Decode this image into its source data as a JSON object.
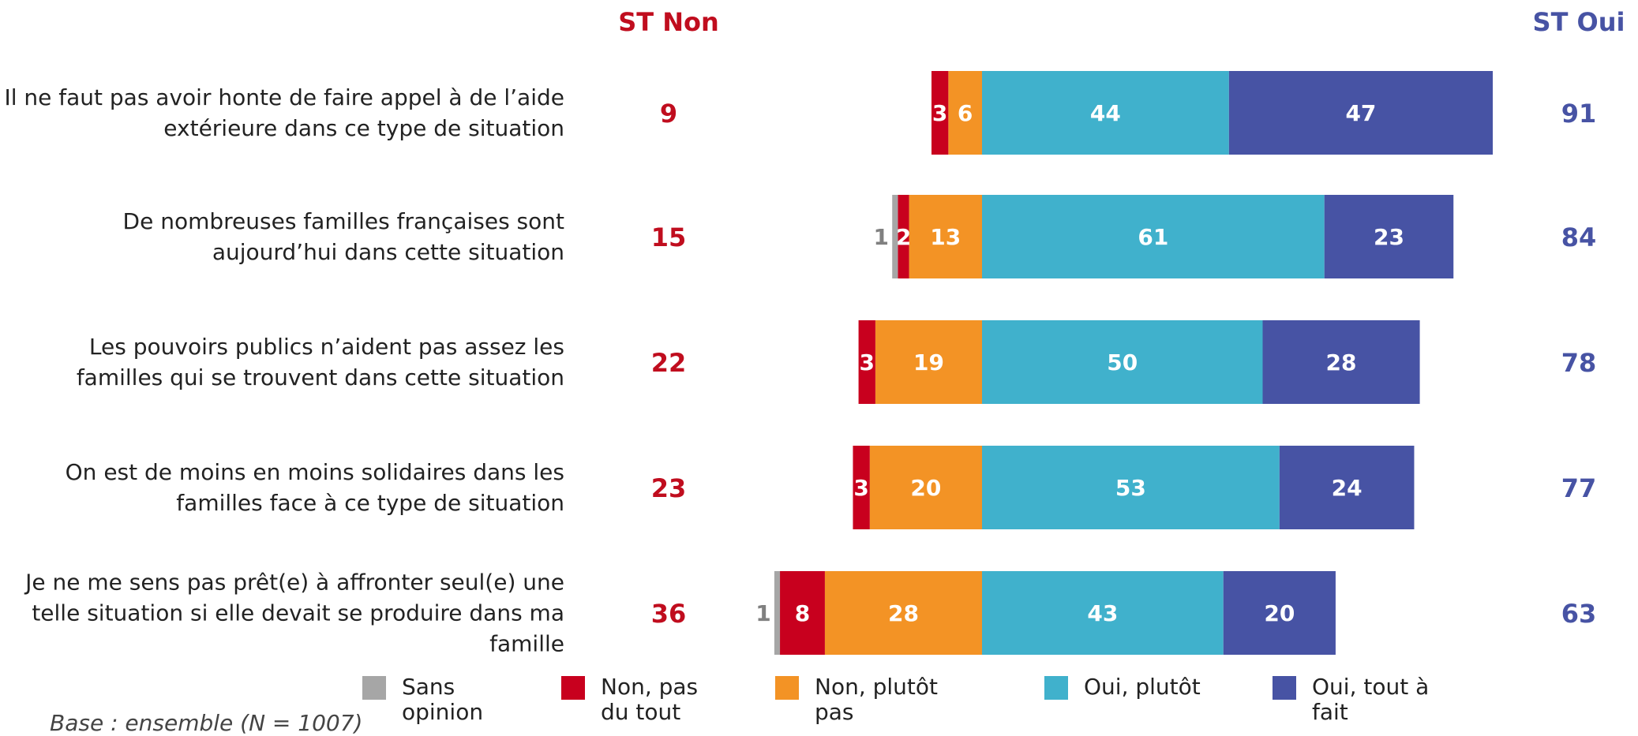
{
  "chart_data": {
    "type": "diverging_bar",
    "categories": [
      "Il ne faut pas avoir honte de faire appel à de l’aide extérieure dans ce type de situation",
      "De nombreuses familles françaises sont aujourd’hui dans cette situation",
      "Les pouvoirs publics n’aident pas assez les familles qui se trouvent dans cette situation",
      "On est de moins en moins solidaires dans les familles face à ce type de situation",
      "Je ne me sens pas prêt(e) à affronter seul(e) une telle situation si elle devait se produire dans ma famille"
    ],
    "series": [
      {
        "name": "Sans opinion",
        "color": "#a6a6a6",
        "values": [
          null,
          1,
          null,
          null,
          1
        ]
      },
      {
        "name": "Non, pas du tout",
        "color": "#c8001e",
        "values": [
          3,
          2,
          3,
          3,
          8
        ]
      },
      {
        "name": "Non, plutôt pas",
        "color": "#f39325",
        "values": [
          6,
          13,
          19,
          20,
          28
        ]
      },
      {
        "name": "Oui, plutôt",
        "color": "#40b1cc",
        "values": [
          44,
          61,
          50,
          53,
          43
        ]
      },
      {
        "name": "Oui, tout à fait",
        "color": "#4753a4",
        "values": [
          47,
          23,
          28,
          24,
          20
        ]
      }
    ],
    "st_non": {
      "title": "ST Non",
      "color": "#c00d1e",
      "values": [
        9,
        15,
        22,
        23,
        36
      ]
    },
    "st_oui": {
      "title": "ST Oui",
      "color": "#4753a4",
      "values": [
        91,
        84,
        78,
        77,
        63
      ]
    },
    "footnote": "Base : ensemble (N = 1007)"
  }
}
